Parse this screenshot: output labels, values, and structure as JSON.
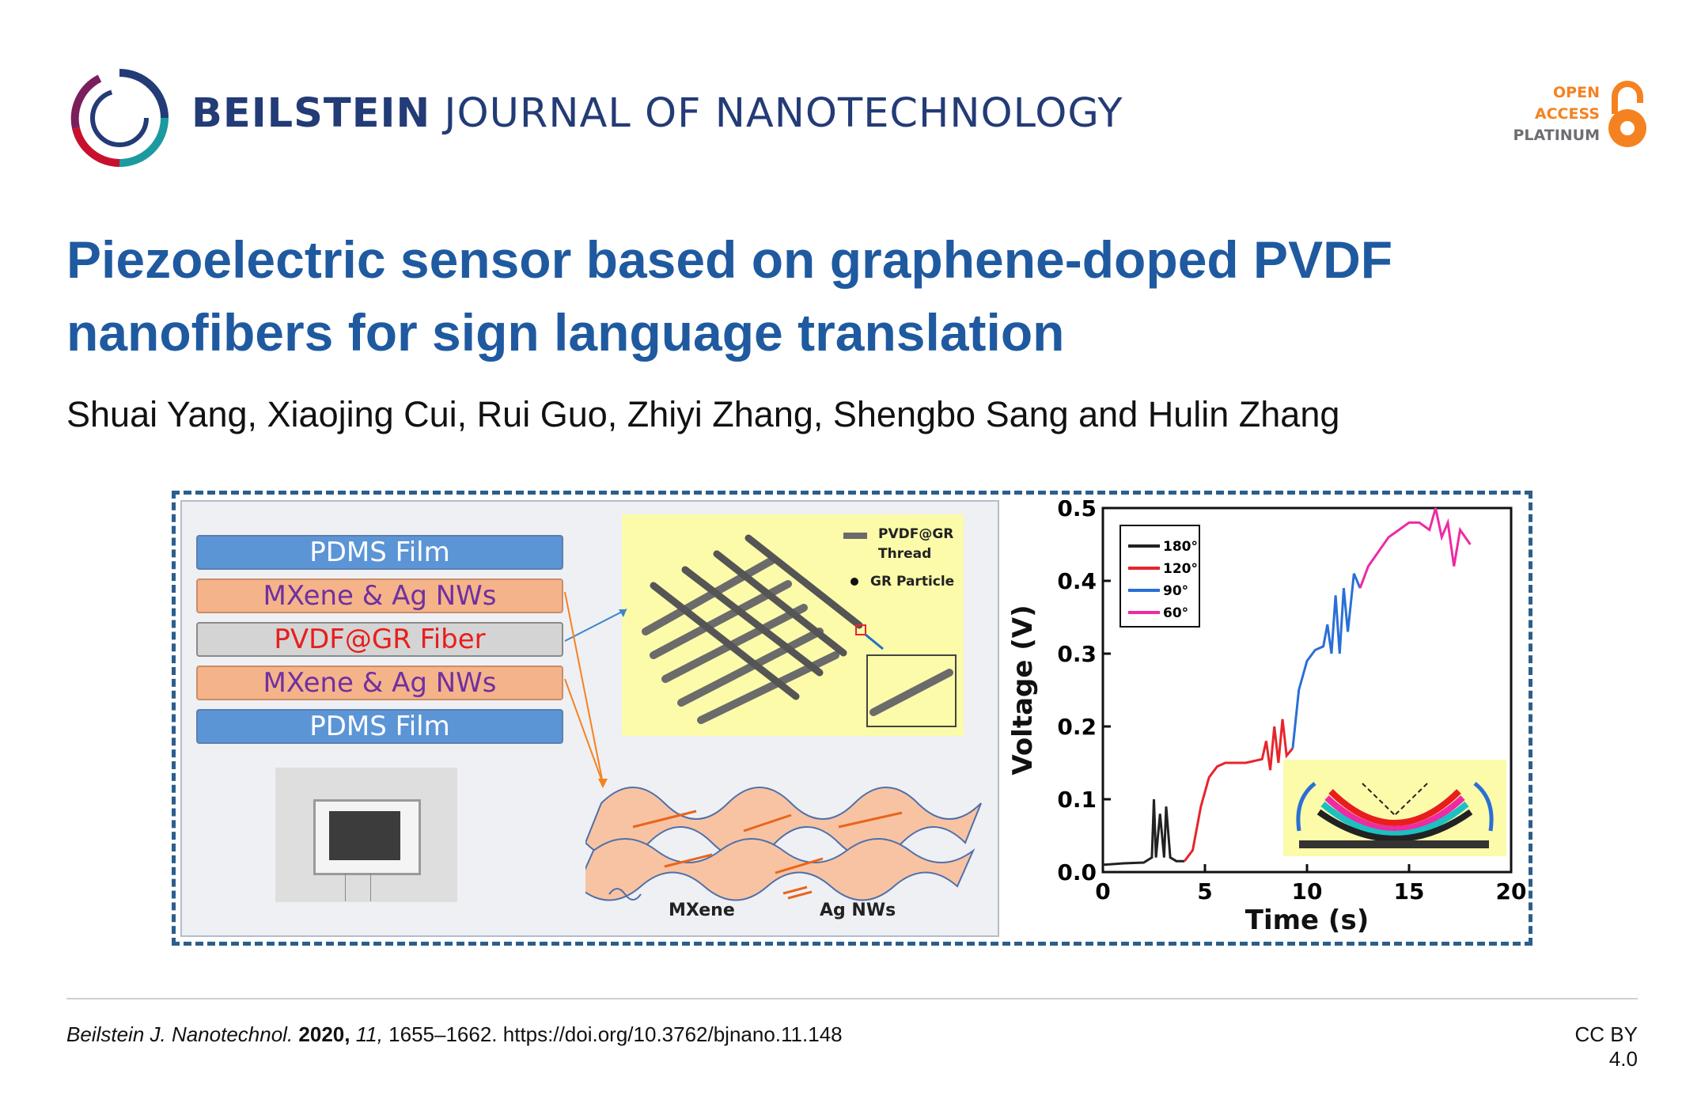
{
  "header": {
    "journal_bold": "BEILSTEIN",
    "journal_rest": "JOURNAL OF NANOTECHNOLOGY",
    "open_access": [
      "OPEN",
      "ACCESS",
      "PLATINUM"
    ],
    "logo_icon": "beilstein-ring-logo",
    "oa_icon": "open-access-lock-icon"
  },
  "article": {
    "title_line1": "Piezoelectric sensor based on graphene-doped PVDF",
    "title_line2": "nanofibers for sign language translation",
    "authors": "Shuai Yang, Xiaojing Cui, Rui Guo, Zhiyi Zhang, Shengbo Sang and Hulin Zhang"
  },
  "figure": {
    "layers": [
      "PDMS Film",
      "MXene & Ag NWs",
      "PVDF@GR Fiber",
      "MXene & Ag NWs",
      "PDMS Film"
    ],
    "legend_top": [
      "PVDF@GR",
      "Thread",
      "GR Particle"
    ],
    "legend_bottom": [
      "MXene",
      "Ag NWs"
    ]
  },
  "chart_data": {
    "type": "line",
    "xlabel": "Time (s)",
    "ylabel": "Voltage (V)",
    "xlim": [
      0,
      20
    ],
    "ylim": [
      0,
      0.5
    ],
    "xticks": [
      "0",
      "5",
      "10",
      "15",
      "20"
    ],
    "yticks": [
      "0.0",
      "0.1",
      "0.2",
      "0.3",
      "0.4",
      "0.5"
    ],
    "legend_position": "top-left",
    "series": [
      {
        "name": "180°",
        "color": "#222222",
        "x": [
          0,
          1,
          2,
          2.4,
          2.5,
          2.6,
          2.8,
          3.0,
          3.1,
          3.3,
          3.6,
          4.0
        ],
        "y": [
          0.01,
          0.012,
          0.013,
          0.02,
          0.1,
          0.02,
          0.08,
          0.02,
          0.09,
          0.02,
          0.015,
          0.015
        ]
      },
      {
        "name": "120°",
        "color": "#e8242b",
        "x": [
          4.0,
          4.4,
          4.8,
          5.2,
          5.6,
          6.0,
          7.0,
          7.8,
          8.0,
          8.2,
          8.4,
          8.6,
          8.8,
          9.0,
          9.3
        ],
        "y": [
          0.015,
          0.03,
          0.09,
          0.13,
          0.145,
          0.15,
          0.15,
          0.155,
          0.18,
          0.14,
          0.2,
          0.15,
          0.21,
          0.16,
          0.17
        ]
      },
      {
        "name": "90°",
        "color": "#2a6fd6",
        "x": [
          9.3,
          9.6,
          10.0,
          10.4,
          10.8,
          11.0,
          11.2,
          11.4,
          11.6,
          11.8,
          12.0,
          12.3,
          12.6
        ],
        "y": [
          0.17,
          0.25,
          0.29,
          0.305,
          0.31,
          0.34,
          0.3,
          0.38,
          0.3,
          0.39,
          0.33,
          0.41,
          0.39
        ]
      },
      {
        "name": "60°",
        "color": "#ee2aa4",
        "x": [
          12.6,
          13.0,
          13.5,
          14.0,
          14.5,
          15.0,
          15.5,
          16.0,
          16.3,
          16.6,
          16.9,
          17.2,
          17.5,
          18.0
        ],
        "y": [
          0.39,
          0.42,
          0.44,
          0.46,
          0.47,
          0.48,
          0.48,
          0.47,
          0.5,
          0.46,
          0.48,
          0.42,
          0.47,
          0.45
        ]
      }
    ]
  },
  "footer": {
    "journal_abbrev": "Beilstein J. Nanotechnol.",
    "year": "2020,",
    "volume": "11,",
    "pages_doi": "1655–1662. https://doi.org/10.3762/bjnano.11.148",
    "license": "CC BY 4.0"
  }
}
